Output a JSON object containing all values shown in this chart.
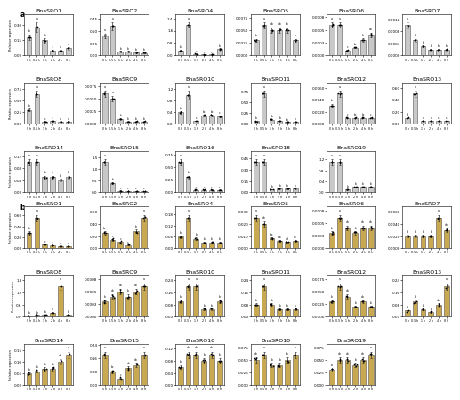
{
  "panel_a_label": "a",
  "panel_b_label": "b",
  "time_points": [
    "0 h",
    "0.5 h",
    "1 h",
    "2 h",
    "4 h",
    "8 h"
  ],
  "color_a": "#c8c8c8",
  "color_b": "#c8a850",
  "edge_color": "#555555",
  "background": "#ffffff",
  "title_fontsize": 4.5,
  "axis_fontsize": 3.0,
  "tick_fontsize": 3.0,
  "letter_fontsize": 5.5,
  "panel_a_genes": [
    "BnaSRO1",
    "BnaSRO2",
    "BnaSRO4",
    "BnaSRO5",
    "BnaSRO6",
    "BnaSRO7",
    "BnaSRO8",
    "BnaSRO9",
    "BnaSRO10",
    "BnaSRO11",
    "BnaSRO12",
    "BnaSRO13",
    "BnaSRO14",
    "BnaSRO15",
    "BnaSRO16",
    "BnaSRO18",
    "BnaSRO19"
  ],
  "panel_b_genes": [
    "BnaSRO1",
    "BnaSRO2",
    "BnaSRO4",
    "BnaSRO5",
    "BnaSRO6",
    "BnaSRO7",
    "BnaSRO8",
    "BnaSRO9",
    "BnaSRO10",
    "BnaSRO11",
    "BnaSRO12",
    "BnaSRO13",
    "BnaSRO14",
    "BnaSRO15",
    "BnaSRO16",
    "BnaSRO18",
    "BnaSRO19"
  ],
  "panel_a_data": {
    "BnaSRO1": [
      0.18,
      0.28,
      0.15,
      0.05,
      0.05,
      0.07
    ],
    "BnaSRO2": [
      0.4,
      0.6,
      0.08,
      0.08,
      0.06,
      0.05
    ],
    "BnaSRO4": [
      0.3,
      2.0,
      0.1,
      0.05,
      0.05,
      0.4
    ],
    "BnaSRO5": [
      0.003,
      0.006,
      0.005,
      0.005,
      0.005,
      0.003
    ],
    "BnaSRO6": [
      0.0006,
      0.0006,
      0.0001,
      0.00015,
      0.0003,
      0.0004
    ],
    "BnaSRO7": [
      0.001,
      0.0005,
      0.0003,
      0.0002,
      0.0002,
      0.0002
    ],
    "BnaSRO8": [
      0.3,
      0.65,
      0.05,
      0.06,
      0.05,
      0.05
    ],
    "BnaSRO9": [
      0.006,
      0.005,
      0.001,
      0.0005,
      0.0005,
      0.0005
    ],
    "BnaSRO10": [
      0.4,
      1.0,
      0.1,
      0.3,
      0.3,
      0.25
    ],
    "BnaSRO11": [
      0.06,
      0.7,
      0.1,
      0.07,
      0.04,
      0.05
    ],
    "BnaSRO12": [
      0.003,
      0.005,
      0.001,
      0.001,
      0.001,
      0.001
    ],
    "BnaSRO13": [
      0.1,
      0.5,
      0.05,
      0.05,
      0.05,
      0.05
    ],
    "BnaSRO14": [
      0.1,
      0.1,
      0.05,
      0.05,
      0.04,
      0.05
    ],
    "BnaSRO15": [
      1.3,
      0.4,
      0.07,
      0.06,
      0.05,
      0.05
    ],
    "BnaSRO16": [
      0.6,
      0.3,
      0.05,
      0.05,
      0.05,
      0.05
    ],
    "BnaSRO18": [
      0.4,
      0.4,
      0.04,
      0.05,
      0.05,
      0.05
    ],
    "BnaSRO19": [
      1.1,
      1.1,
      0.1,
      0.2,
      0.2,
      0.2
    ]
  },
  "panel_a_yerr": {
    "BnaSRO1": [
      0.03,
      0.05,
      0.02,
      0.005,
      0.005,
      0.01
    ],
    "BnaSRO2": [
      0.05,
      0.08,
      0.01,
      0.01,
      0.01,
      0.01
    ],
    "BnaSRO4": [
      0.05,
      0.15,
      0.02,
      0.01,
      0.01,
      0.05
    ],
    "BnaSRO5": [
      0.0003,
      0.0006,
      0.0005,
      0.0005,
      0.0005,
      0.0003
    ],
    "BnaSRO6": [
      5e-05,
      5e-05,
      1e-05,
      1e-05,
      3e-05,
      4e-05
    ],
    "BnaSRO7": [
      0.0001,
      5e-05,
      3e-05,
      2e-05,
      2e-05,
      2e-05
    ],
    "BnaSRO8": [
      0.03,
      0.07,
      0.005,
      0.006,
      0.005,
      0.005
    ],
    "BnaSRO9": [
      0.0006,
      0.0005,
      0.0001,
      5e-05,
      5e-05,
      5e-05
    ],
    "BnaSRO10": [
      0.04,
      0.15,
      0.01,
      0.03,
      0.03,
      0.025
    ],
    "BnaSRO11": [
      0.006,
      0.07,
      0.01,
      0.007,
      0.004,
      0.005
    ],
    "BnaSRO12": [
      0.0003,
      0.0005,
      0.0001,
      0.0001,
      0.0001,
      0.0001
    ],
    "BnaSRO13": [
      0.01,
      0.05,
      0.005,
      0.005,
      0.005,
      0.005
    ],
    "BnaSRO14": [
      0.01,
      0.01,
      0.005,
      0.005,
      0.004,
      0.005
    ],
    "BnaSRO15": [
      0.13,
      0.04,
      0.007,
      0.006,
      0.005,
      0.005
    ],
    "BnaSRO16": [
      0.06,
      0.03,
      0.005,
      0.005,
      0.005,
      0.005
    ],
    "BnaSRO18": [
      0.04,
      0.04,
      0.004,
      0.005,
      0.005,
      0.005
    ],
    "BnaSRO19": [
      0.11,
      0.11,
      0.01,
      0.02,
      0.02,
      0.02
    ]
  },
  "panel_b_data": {
    "BnaSRO1": [
      0.28,
      0.55,
      0.07,
      0.05,
      0.04,
      0.03
    ],
    "BnaSRO2": [
      0.25,
      0.14,
      0.1,
      0.05,
      0.28,
      0.5
    ],
    "BnaSRO4": [
      0.06,
      0.16,
      0.05,
      0.03,
      0.03,
      0.03
    ],
    "BnaSRO5": [
      0.025,
      0.02,
      0.008,
      0.006,
      0.005,
      0.006
    ],
    "BnaSRO6": [
      0.0003,
      0.0006,
      0.0004,
      0.0003,
      0.0004,
      0.0004
    ],
    "BnaSRO7": [
      0.002,
      0.002,
      0.002,
      0.002,
      0.005,
      0.003
    ],
    "BnaSRO8": [
      0.06,
      0.08,
      0.1,
      0.2,
      1.5,
      0.1
    ],
    "BnaSRO9": [
      0.0003,
      0.0004,
      0.0005,
      0.0004,
      0.0005,
      0.0006
    ],
    "BnaSRO10": [
      0.1,
      0.2,
      0.2,
      0.05,
      0.05,
      0.1
    ],
    "BnaSRO11": [
      0.08,
      0.2,
      0.08,
      0.05,
      0.05,
      0.05
    ],
    "BnaSRO12": [
      0.003,
      0.006,
      0.004,
      0.002,
      0.003,
      0.002
    ],
    "BnaSRO13": [
      0.04,
      0.1,
      0.05,
      0.03,
      0.08,
      0.2
    ],
    "BnaSRO14": [
      0.05,
      0.06,
      0.07,
      0.07,
      0.1,
      0.13
    ],
    "BnaSRO15": [
      0.18,
      0.08,
      0.04,
      0.1,
      0.12,
      0.18
    ],
    "BnaSRO16": [
      0.06,
      0.1,
      0.1,
      0.08,
      0.1,
      0.08
    ],
    "BnaSRO18": [
      0.05,
      0.06,
      0.04,
      0.04,
      0.05,
      0.06
    ],
    "BnaSRO19": [
      0.03,
      0.05,
      0.05,
      0.04,
      0.05,
      0.06
    ]
  },
  "panel_b_yerr": {
    "BnaSRO1": [
      0.03,
      0.06,
      0.007,
      0.005,
      0.004,
      0.003
    ],
    "BnaSRO2": [
      0.025,
      0.014,
      0.01,
      0.005,
      0.028,
      0.05
    ],
    "BnaSRO4": [
      0.006,
      0.016,
      0.005,
      0.003,
      0.003,
      0.003
    ],
    "BnaSRO5": [
      0.0025,
      0.002,
      0.0008,
      0.0006,
      0.0005,
      0.0006
    ],
    "BnaSRO6": [
      3e-05,
      6e-05,
      4e-05,
      3e-05,
      4e-05,
      4e-05
    ],
    "BnaSRO7": [
      0.0002,
      0.0002,
      0.0002,
      0.0002,
      0.0005,
      0.0003
    ],
    "BnaSRO8": [
      0.006,
      0.008,
      0.01,
      0.02,
      0.15,
      0.01
    ],
    "BnaSRO9": [
      3e-05,
      4e-05,
      5e-05,
      4e-05,
      5e-05,
      6e-05
    ],
    "BnaSRO10": [
      0.01,
      0.02,
      0.02,
      0.005,
      0.005,
      0.01
    ],
    "BnaSRO11": [
      0.008,
      0.02,
      0.008,
      0.005,
      0.005,
      0.005
    ],
    "BnaSRO12": [
      0.0003,
      0.0006,
      0.0004,
      0.0002,
      0.0003,
      0.0002
    ],
    "BnaSRO13": [
      0.004,
      0.01,
      0.005,
      0.003,
      0.008,
      0.02
    ],
    "BnaSRO14": [
      0.005,
      0.006,
      0.007,
      0.007,
      0.01,
      0.013
    ],
    "BnaSRO15": [
      0.018,
      0.008,
      0.004,
      0.01,
      0.012,
      0.018
    ],
    "BnaSRO16": [
      0.006,
      0.01,
      0.01,
      0.008,
      0.01,
      0.008
    ],
    "BnaSRO18": [
      0.005,
      0.006,
      0.004,
      0.004,
      0.005,
      0.006
    ],
    "BnaSRO19": [
      0.003,
      0.005,
      0.005,
      0.004,
      0.005,
      0.006
    ]
  },
  "letters_a": {
    "BnaSRO1": [
      "b",
      "a",
      "b",
      "c",
      "c",
      "c"
    ],
    "BnaSRO2": [
      "a",
      "a",
      "b",
      "b",
      "b",
      "b"
    ],
    "BnaSRO4": [
      "b",
      "a",
      "c",
      "c",
      "c",
      "b"
    ],
    "BnaSRO5": [
      "b",
      "a",
      "ab",
      "ab",
      "ab",
      "b"
    ],
    "BnaSRO6": [
      "a",
      "a",
      "c",
      "bc",
      "b",
      "ab"
    ],
    "BnaSRO7": [
      "a",
      "b",
      "b",
      "b",
      "b",
      "b"
    ],
    "BnaSRO8": [
      "b",
      "a",
      "c",
      "c",
      "c",
      "c"
    ],
    "BnaSRO9": [
      "a",
      "a",
      "b",
      "b",
      "b",
      "b"
    ],
    "BnaSRO10": [
      "b",
      "a",
      "c",
      "bc",
      "bc",
      "c"
    ],
    "BnaSRO11": [
      "b",
      "a",
      "b",
      "b",
      "b",
      "b"
    ],
    "BnaSRO12": [
      "b",
      "a",
      "c",
      "bc",
      "bc",
      "c"
    ],
    "BnaSRO13": [
      "b",
      "a",
      "c",
      "c",
      "c",
      "c"
    ],
    "BnaSRO14": [
      "a",
      "a",
      "b",
      "b",
      "b",
      "b"
    ],
    "BnaSRO15": [
      "a",
      "b",
      "c",
      "c",
      "c",
      "c"
    ],
    "BnaSRO16": [
      "a",
      "b",
      "c",
      "c",
      "c",
      "c"
    ],
    "BnaSRO18": [
      "a",
      "a",
      "b",
      "b",
      "b",
      "b"
    ],
    "BnaSRO19": [
      "a",
      "a",
      "b",
      "b",
      "b",
      "b"
    ]
  },
  "letters_b": {
    "BnaSRO1": [
      "b",
      "a",
      "c",
      "c",
      "c",
      "c"
    ],
    "BnaSRO2": [
      "bc",
      "c",
      "c",
      "c",
      "b",
      "a"
    ],
    "BnaSRO4": [
      "b",
      "a",
      "b",
      "b",
      "b",
      "b"
    ],
    "BnaSRO5": [
      "a",
      "ab",
      "bc",
      "cd",
      "d",
      "cd"
    ],
    "BnaSRO6": [
      "b",
      "a",
      "ab",
      "b",
      "ab",
      "ab"
    ],
    "BnaSRO7": [
      "b",
      "b",
      "b",
      "b",
      "a",
      "ab"
    ],
    "BnaSRO8": [
      "b",
      "b",
      "b",
      "b",
      "a",
      "b"
    ],
    "BnaSRO9": [
      "b",
      "ab",
      "ab",
      "b",
      "ab",
      "a"
    ],
    "BnaSRO10": [
      "b",
      "a",
      "a",
      "b",
      "b",
      "b"
    ],
    "BnaSRO11": [
      "b",
      "a",
      "b",
      "b",
      "b",
      "b"
    ],
    "BnaSRO12": [
      "b",
      "a",
      "ab",
      "b",
      "ab",
      "b"
    ],
    "BnaSRO13": [
      "b",
      "b",
      "b",
      "b",
      "ab",
      "a"
    ],
    "BnaSRO14": [
      "b",
      "b",
      "ab",
      "ab",
      "ab",
      "a"
    ],
    "BnaSRO15": [
      "a",
      "bc",
      "c",
      "ab",
      "ab",
      "a"
    ],
    "BnaSRO16": [
      "b",
      "ab",
      "ab",
      "b",
      "ab",
      "b"
    ],
    "BnaSRO18": [
      "ab",
      "a",
      "b",
      "b",
      "ab",
      "a"
    ],
    "BnaSRO19": [
      "b",
      "ab",
      "ab",
      "b",
      "ab",
      "a"
    ]
  }
}
